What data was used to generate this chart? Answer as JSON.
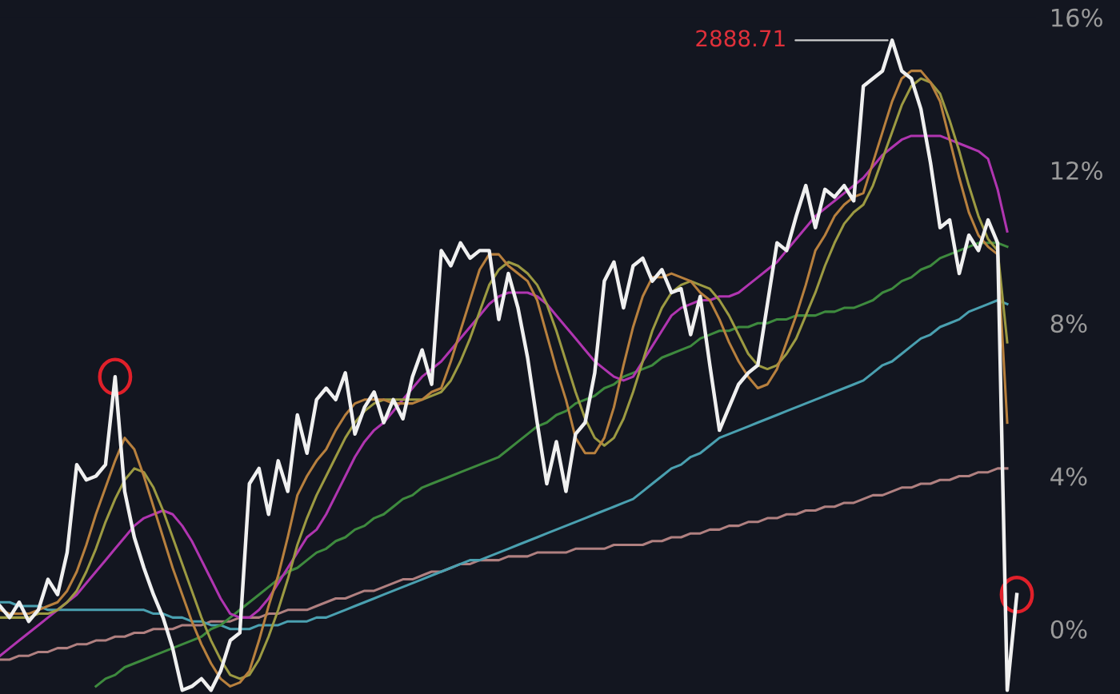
{
  "chart_data": {
    "type": "line",
    "categories": [
      null,
      null,
      null,
      null,
      null,
      null,
      null,
      null,
      null,
      null,
      null,
      null,
      null,
      null,
      null,
      null,
      null,
      null,
      null,
      null,
      null,
      null,
      null,
      null,
      null,
      null,
      null,
      null,
      null,
      null,
      null,
      null,
      null,
      null,
      null,
      null,
      null,
      null,
      null,
      null,
      null,
      null,
      null,
      null,
      null,
      null,
      null,
      null,
      null,
      null,
      null,
      null,
      null,
      null,
      null,
      null,
      null,
      null,
      null,
      null,
      null,
      null,
      null,
      null,
      null,
      null,
      null,
      null,
      null,
      null,
      null,
      null,
      null,
      null,
      null,
      null,
      null,
      null,
      null,
      null,
      null,
      null,
      null,
      null,
      null,
      null,
      null,
      null,
      null,
      null,
      null,
      null,
      null,
      null,
      null,
      null,
      null,
      null,
      null,
      null,
      null,
      null,
      null,
      null,
      null,
      null,
      null
    ],
    "series": [
      {
        "color": "#b08080",
        "values": [
          -0.8,
          -0.8,
          -0.7,
          -0.7,
          -0.6,
          -0.6,
          -0.5,
          -0.5,
          -0.4,
          -0.4,
          -0.3,
          -0.3,
          -0.2,
          -0.2,
          -0.1,
          -0.1,
          0.0,
          0.0,
          0.0,
          0.1,
          0.1,
          0.1,
          0.2,
          0.2,
          0.2,
          0.3,
          0.3,
          0.3,
          0.4,
          0.4,
          0.5,
          0.5,
          0.5,
          0.6,
          0.7,
          0.8,
          0.8,
          0.9,
          1.0,
          1.0,
          1.1,
          1.2,
          1.3,
          1.3,
          1.4,
          1.5,
          1.5,
          1.6,
          1.7,
          1.7,
          1.8,
          1.8,
          1.8,
          1.9,
          1.9,
          1.9,
          2.0,
          2.0,
          2.0,
          2.0,
          2.1,
          2.1,
          2.1,
          2.1,
          2.2,
          2.2,
          2.2,
          2.2,
          2.3,
          2.3,
          2.4,
          2.4,
          2.5,
          2.5,
          2.6,
          2.6,
          2.7,
          2.7,
          2.8,
          2.8,
          2.9,
          2.9,
          3.0,
          3.0,
          3.1,
          3.1,
          3.2,
          3.2,
          3.3,
          3.3,
          3.4,
          3.5,
          3.5,
          3.6,
          3.7,
          3.7,
          3.8,
          3.8,
          3.9,
          3.9,
          4.0,
          4.0,
          4.1,
          4.1,
          4.2,
          4.2,
          null
        ]
      },
      {
        "color": "#4aa0b0",
        "values": [
          0.7,
          0.7,
          0.6,
          0.6,
          0.6,
          0.5,
          0.5,
          0.5,
          0.5,
          0.5,
          0.5,
          0.5,
          0.5,
          0.5,
          0.5,
          0.5,
          0.4,
          0.4,
          0.3,
          0.3,
          0.2,
          0.2,
          0.1,
          0.1,
          0.0,
          0.0,
          0.0,
          0.1,
          0.1,
          0.1,
          0.2,
          0.2,
          0.2,
          0.3,
          0.3,
          0.4,
          0.5,
          0.6,
          0.7,
          0.8,
          0.9,
          1.0,
          1.1,
          1.2,
          1.3,
          1.4,
          1.5,
          1.6,
          1.7,
          1.8,
          1.8,
          1.9,
          2.0,
          2.1,
          2.2,
          2.3,
          2.4,
          2.5,
          2.6,
          2.7,
          2.8,
          2.9,
          3.0,
          3.1,
          3.2,
          3.3,
          3.4,
          3.6,
          3.8,
          4.0,
          4.2,
          4.3,
          4.5,
          4.6,
          4.8,
          5.0,
          5.1,
          5.2,
          5.3,
          5.4,
          5.5,
          5.6,
          5.7,
          5.8,
          5.9,
          6.0,
          6.1,
          6.2,
          6.3,
          6.4,
          6.5,
          6.7,
          6.9,
          7.0,
          7.2,
          7.4,
          7.6,
          7.7,
          7.9,
          8.0,
          8.1,
          8.3,
          8.4,
          8.5,
          8.6,
          8.5,
          null
        ]
      },
      {
        "color": "#3e8a3e",
        "values": [
          null,
          null,
          null,
          null,
          null,
          null,
          null,
          null,
          null,
          null,
          -1.5,
          -1.3,
          -1.2,
          -1.0,
          -0.9,
          -0.8,
          -0.7,
          -0.6,
          -0.5,
          -0.4,
          -0.3,
          -0.2,
          0.0,
          0.1,
          0.3,
          0.5,
          0.7,
          0.9,
          1.1,
          1.3,
          1.5,
          1.6,
          1.8,
          2.0,
          2.1,
          2.3,
          2.4,
          2.6,
          2.7,
          2.9,
          3.0,
          3.2,
          3.4,
          3.5,
          3.7,
          3.8,
          3.9,
          4.0,
          4.1,
          4.2,
          4.3,
          4.4,
          4.5,
          4.7,
          4.9,
          5.1,
          5.3,
          5.4,
          5.6,
          5.7,
          5.9,
          6.0,
          6.1,
          6.3,
          6.4,
          6.6,
          6.7,
          6.8,
          6.9,
          7.1,
          7.2,
          7.3,
          7.4,
          7.6,
          7.7,
          7.8,
          7.8,
          7.9,
          7.9,
          8.0,
          8.0,
          8.1,
          8.1,
          8.2,
          8.2,
          8.2,
          8.3,
          8.3,
          8.4,
          8.4,
          8.5,
          8.6,
          8.8,
          8.9,
          9.1,
          9.2,
          9.4,
          9.5,
          9.7,
          9.8,
          9.9,
          10.0,
          10.1,
          10.1,
          10.1,
          10.0,
          null
        ]
      },
      {
        "color": "#b035b0",
        "values": [
          -0.7,
          -0.5,
          -0.3,
          -0.1,
          0.1,
          0.3,
          0.5,
          0.7,
          0.9,
          1.2,
          1.5,
          1.8,
          2.1,
          2.4,
          2.7,
          2.9,
          3.0,
          3.1,
          3.0,
          2.7,
          2.3,
          1.8,
          1.3,
          0.8,
          0.4,
          0.3,
          0.3,
          0.5,
          0.8,
          1.2,
          1.6,
          2.0,
          2.4,
          2.6,
          3.0,
          3.5,
          4.0,
          4.5,
          4.9,
          5.2,
          5.4,
          5.7,
          6.0,
          6.3,
          6.6,
          6.8,
          7.0,
          7.3,
          7.6,
          7.9,
          8.2,
          8.5,
          8.7,
          8.8,
          8.8,
          8.8,
          8.7,
          8.5,
          8.2,
          7.9,
          7.6,
          7.3,
          7.0,
          6.8,
          6.6,
          6.5,
          6.6,
          7.0,
          7.4,
          7.8,
          8.2,
          8.4,
          8.5,
          8.6,
          8.6,
          8.7,
          8.7,
          8.8,
          9.0,
          9.2,
          9.4,
          9.6,
          9.9,
          10.2,
          10.5,
          10.8,
          11.0,
          11.2,
          11.4,
          11.6,
          11.8,
          12.1,
          12.4,
          12.6,
          12.8,
          12.9,
          12.9,
          12.9,
          12.9,
          12.8,
          12.7,
          12.6,
          12.5,
          12.3,
          11.5,
          10.4,
          null
        ]
      },
      {
        "color": "#9c9a42",
        "values": [
          0.3,
          0.3,
          0.3,
          0.3,
          0.4,
          0.4,
          0.5,
          0.7,
          1.0,
          1.5,
          2.1,
          2.8,
          3.4,
          3.9,
          4.2,
          4.1,
          3.7,
          3.1,
          2.4,
          1.7,
          1.0,
          0.3,
          -0.3,
          -0.8,
          -1.2,
          -1.3,
          -1.2,
          -0.8,
          -0.2,
          0.5,
          1.3,
          2.2,
          2.9,
          3.5,
          4.0,
          4.5,
          5.0,
          5.4,
          5.7,
          5.9,
          6.0,
          6.0,
          6.0,
          6.0,
          6.0,
          6.1,
          6.2,
          6.5,
          7.0,
          7.6,
          8.3,
          9.0,
          9.4,
          9.6,
          9.5,
          9.3,
          9.0,
          8.5,
          7.8,
          7.0,
          6.2,
          5.5,
          5.0,
          4.8,
          5.0,
          5.5,
          6.2,
          7.0,
          7.8,
          8.4,
          8.8,
          9.0,
          9.1,
          9.0,
          8.9,
          8.6,
          8.2,
          7.7,
          7.2,
          6.9,
          6.8,
          6.9,
          7.2,
          7.6,
          8.2,
          8.8,
          9.5,
          10.1,
          10.6,
          10.9,
          11.1,
          11.6,
          12.3,
          13.0,
          13.7,
          14.2,
          14.4,
          14.3,
          14.0,
          13.3,
          12.5,
          11.6,
          10.8,
          10.2,
          9.9,
          7.5,
          null
        ]
      },
      {
        "color": "#b8803e",
        "values": [
          0.5,
          0.4,
          0.4,
          0.4,
          0.5,
          0.6,
          0.7,
          1.0,
          1.5,
          2.2,
          3.0,
          3.7,
          4.4,
          5.0,
          4.7,
          4.0,
          3.2,
          2.4,
          1.6,
          0.9,
          0.2,
          -0.4,
          -0.9,
          -1.3,
          -1.5,
          -1.4,
          -1.1,
          -0.3,
          0.6,
          1.4,
          2.4,
          3.5,
          4.0,
          4.4,
          4.7,
          5.2,
          5.6,
          5.9,
          6.0,
          6.0,
          6.0,
          5.9,
          5.9,
          5.9,
          6.0,
          6.2,
          6.3,
          7.0,
          7.8,
          8.6,
          9.4,
          9.8,
          9.8,
          9.5,
          9.3,
          9.1,
          8.6,
          7.7,
          6.8,
          6.0,
          5.0,
          4.6,
          4.6,
          5.0,
          5.8,
          6.9,
          7.9,
          8.7,
          9.2,
          9.2,
          9.3,
          9.2,
          9.1,
          8.8,
          8.6,
          8.1,
          7.5,
          7.0,
          6.6,
          6.3,
          6.4,
          6.8,
          7.5,
          8.2,
          9.0,
          9.9,
          10.3,
          10.8,
          11.1,
          11.3,
          11.4,
          12.2,
          13.0,
          13.8,
          14.4,
          14.6,
          14.6,
          14.3,
          13.8,
          12.8,
          11.8,
          10.9,
          10.3,
          10.0,
          9.8,
          5.4,
          null
        ]
      },
      {
        "color": "#f0f0f0",
        "values": [
          0.6,
          0.3,
          0.7,
          0.2,
          0.5,
          1.3,
          0.9,
          2.0,
          4.3,
          3.9,
          4.0,
          4.3,
          6.6,
          3.6,
          2.4,
          1.6,
          0.9,
          0.3,
          -0.5,
          -1.6,
          -1.5,
          -1.3,
          -1.6,
          -1.1,
          -0.3,
          -0.1,
          3.8,
          4.2,
          3.0,
          4.4,
          3.6,
          5.6,
          4.6,
          6.0,
          6.3,
          6.0,
          6.7,
          5.1,
          5.8,
          6.2,
          5.4,
          6.0,
          5.5,
          6.6,
          7.3,
          6.4,
          9.9,
          9.5,
          10.1,
          9.7,
          9.9,
          9.9,
          8.1,
          9.3,
          8.4,
          7.1,
          5.4,
          3.8,
          4.9,
          3.6,
          5.1,
          5.4,
          6.7,
          9.1,
          9.6,
          8.4,
          9.5,
          9.7,
          9.1,
          9.4,
          8.8,
          8.9,
          7.7,
          8.7,
          6.9,
          5.2,
          5.8,
          6.4,
          6.7,
          6.9,
          8.5,
          10.1,
          9.9,
          10.8,
          11.6,
          10.5,
          11.5,
          11.3,
          11.6,
          11.2,
          14.2,
          14.4,
          14.6,
          15.4,
          14.6,
          14.4,
          13.6,
          12.2,
          10.5,
          10.7,
          9.3,
          10.3,
          9.9,
          10.7,
          10.1,
          -1.6,
          0.9
        ]
      }
    ],
    "ylim": [
      -1.7,
      16
    ],
    "yticks": [
      {
        "value": 0,
        "label": "0%"
      },
      {
        "value": 4,
        "label": "4%"
      },
      {
        "value": 8,
        "label": "8%"
      },
      {
        "value": 12,
        "label": "12%"
      },
      {
        "value": 16,
        "label": "16%"
      }
    ],
    "annotations": [
      "2888.71"
    ],
    "grid": false,
    "legend": false
  }
}
